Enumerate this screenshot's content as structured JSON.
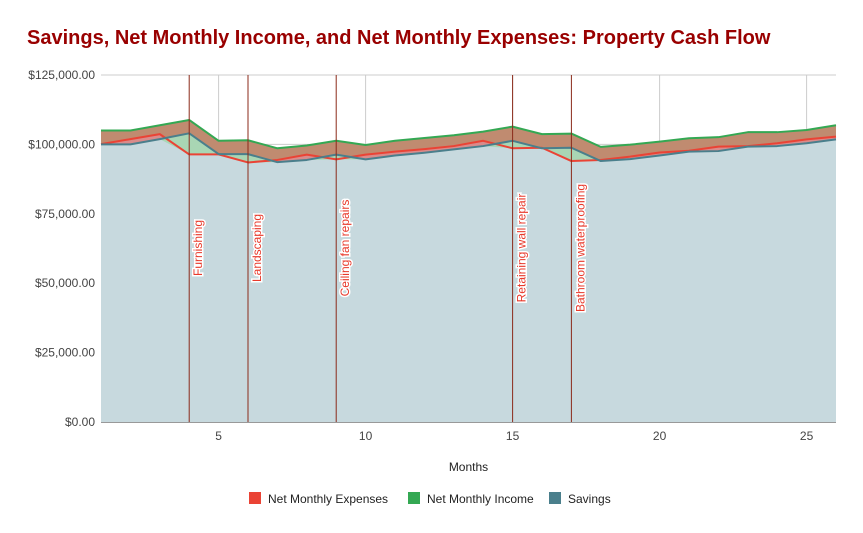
{
  "chart_data": {
    "type": "area",
    "title": "Savings, Net Monthly Income, and Net Monthly Expenses: Property Cash Flow",
    "xlabel": "Months",
    "ylabel": "",
    "xlim": [
      1,
      26
    ],
    "ylim": [
      0,
      125000
    ],
    "x_ticks": [
      5,
      10,
      15,
      20,
      25
    ],
    "y_ticks": [
      0,
      25000,
      50000,
      75000,
      100000,
      125000
    ],
    "y_tick_labels": [
      "$0.00",
      "$25,000.00",
      "$50,000.00",
      "$75,000.00",
      "$100,000.00",
      "$125,000.00"
    ],
    "grid": true,
    "legend_position": "bottom",
    "x": [
      1,
      2,
      3,
      4,
      5,
      6,
      7,
      8,
      9,
      10,
      11,
      12,
      13,
      14,
      15,
      16,
      17,
      18,
      19,
      20,
      21,
      22,
      23,
      24,
      25,
      26
    ],
    "series": [
      {
        "name": "Net Monthly Expenses",
        "color": "#ea4335",
        "values": [
          100100,
          101900,
          103700,
          96400,
          96400,
          93500,
          94400,
          96300,
          94600,
          96300,
          97400,
          98300,
          99400,
          101300,
          98600,
          98800,
          94000,
          94400,
          95600,
          97100,
          97700,
          99200,
          99400,
          100400,
          101800,
          102800
        ]
      },
      {
        "name": "Net Monthly Income",
        "color": "#34a853",
        "values": [
          105000,
          105000,
          106900,
          108800,
          101300,
          101500,
          98600,
          99600,
          101300,
          99800,
          101300,
          102300,
          103300,
          104600,
          106400,
          103700,
          103900,
          99100,
          99900,
          101000,
          102200,
          102600,
          104400,
          104400,
          105200,
          106900
        ]
      },
      {
        "name": "Savings",
        "color": "#4a7f8c",
        "values": [
          100000,
          100000,
          101900,
          104000,
          96500,
          96500,
          93600,
          94400,
          96300,
          94600,
          96000,
          97000,
          98200,
          99400,
          101300,
          98600,
          98800,
          94000,
          94700,
          96000,
          97400,
          97600,
          99200,
          99400,
          100400,
          101800
        ]
      }
    ],
    "annotations": [
      {
        "x": 4,
        "label": "Furnishing"
      },
      {
        "x": 6,
        "label": "Landscaping"
      },
      {
        "x": 9,
        "label": "Ceiling fan repairs"
      },
      {
        "x": 15,
        "label": "Retaining wall repair"
      },
      {
        "x": 17,
        "label": "Bathroom waterproofing"
      }
    ],
    "colors": {
      "title": "#990000",
      "annotation_line": "#8b2a1a",
      "annotation_text": "#e8392b"
    }
  }
}
